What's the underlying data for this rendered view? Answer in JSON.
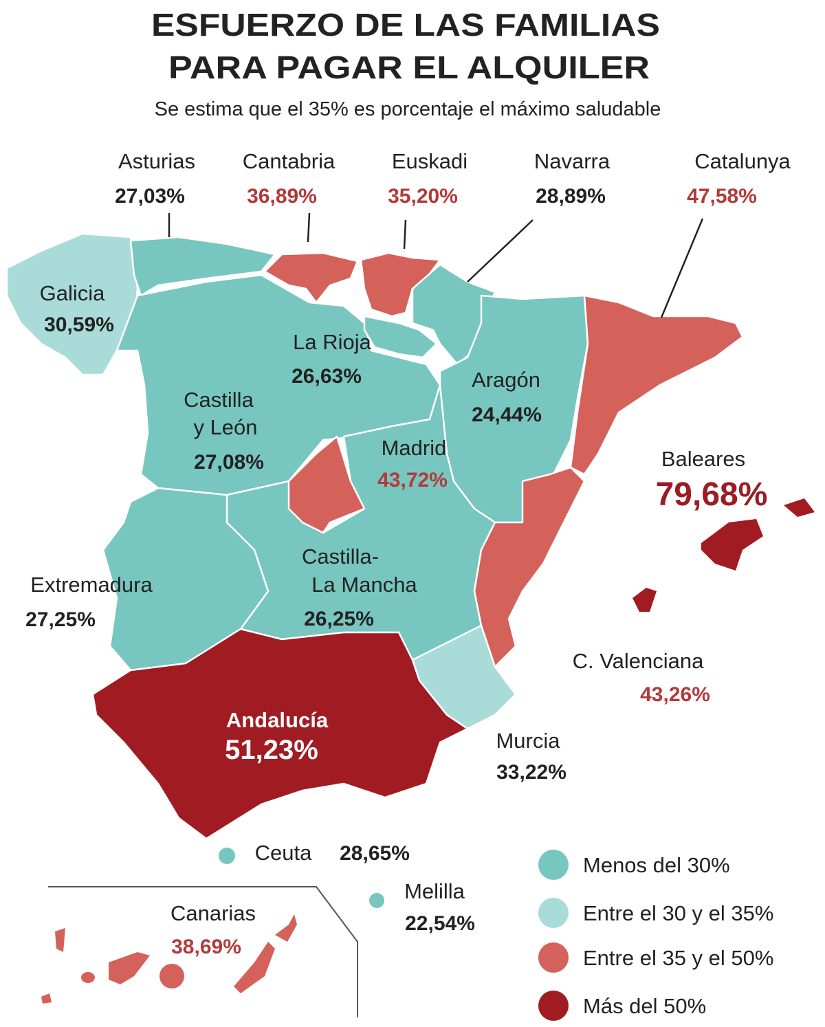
{
  "title": [
    "ESFUERZO DE LAS FAMILIAS",
    "PARA PAGAR EL ALQUILER"
  ],
  "subtitle": "Se estima que el 35% es porcentaje el máximo saludable",
  "regions": [
    {
      "name": [
        "Asturias"
      ],
      "value": "27,03%"
    },
    {
      "name": [
        "Cantabria"
      ],
      "value": "36,89%"
    },
    {
      "name": [
        "Euskadi"
      ],
      "value": "35,20%"
    },
    {
      "name": [
        "Navarra"
      ],
      "value": "28,89%"
    },
    {
      "name": [
        "Catalunya"
      ],
      "value": "47,58%"
    },
    {
      "name": [
        "Galicia"
      ],
      "value": "30,59%"
    },
    {
      "name": [
        "La Rioja"
      ],
      "value": "26,63%"
    },
    {
      "name": [
        "Castilla",
        "y León"
      ],
      "value": "27,08%"
    },
    {
      "name": [
        "Aragón"
      ],
      "value": "24,44%"
    },
    {
      "name": [
        "Madrid"
      ],
      "value": "43,72%"
    },
    {
      "name": [
        "Baleares"
      ],
      "value": "79,68%"
    },
    {
      "name": [
        "Extremadura"
      ],
      "value": "27,25%"
    },
    {
      "name": [
        "Castilla-",
        "La Mancha"
      ],
      "value": "26,25%"
    },
    {
      "name": [
        "C. Valenciana"
      ],
      "value": "43,26%"
    },
    {
      "name": [
        "Murcia"
      ],
      "value": "33,22%"
    },
    {
      "name": [
        "Andalucía"
      ],
      "value": "51,23%"
    },
    {
      "name": [
        "Ceuta"
      ],
      "value": "28,65%"
    },
    {
      "name": [
        "Melilla"
      ],
      "value": "22,54%"
    },
    {
      "name": [
        "Canarias"
      ],
      "value": "38,69%"
    }
  ],
  "legend": [
    "Menos del 30%",
    "Entre el 30 y el 35%",
    "Entre el 35 y el 50%",
    "Más del 50%"
  ]
}
